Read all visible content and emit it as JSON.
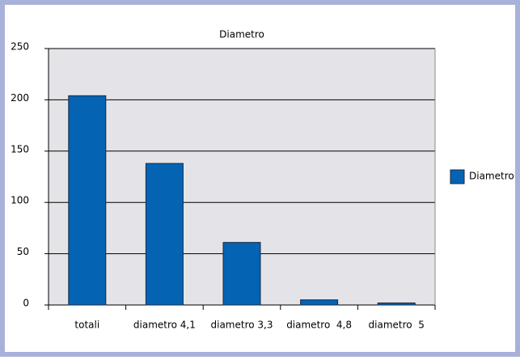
{
  "chart_data": {
    "type": "bar",
    "title": "Diametro",
    "categories": [
      "totali",
      "diametro 4,1",
      "diametro 3,3",
      "diametro  4,8",
      "diametro  5"
    ],
    "series": [
      {
        "name": "Diametro",
        "color": "#0563b4",
        "values": [
          204,
          138,
          61,
          5,
          2
        ]
      }
    ],
    "ylim": [
      0,
      250
    ],
    "yticks": [
      0,
      50,
      100,
      150,
      200,
      250
    ],
    "grid": true,
    "legend": "right"
  }
}
